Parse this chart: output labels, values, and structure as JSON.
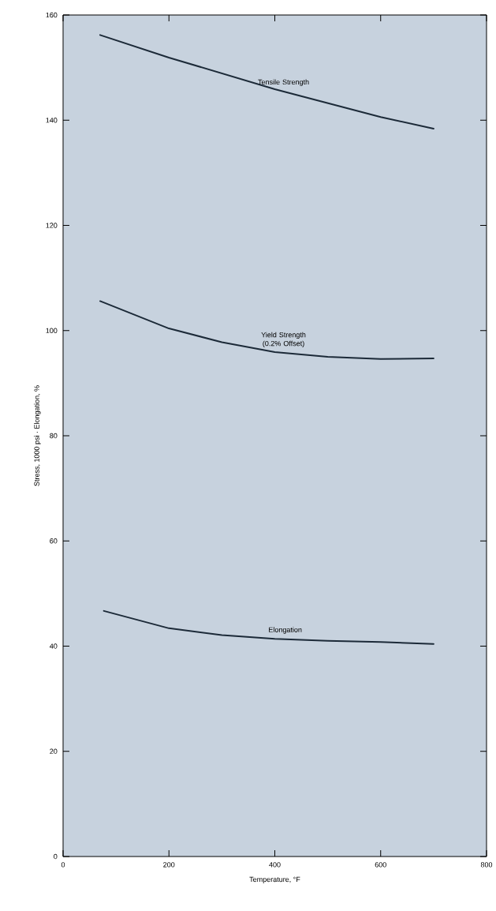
{
  "chart_data": {
    "type": "line",
    "xlabel": "Temperature, °F",
    "ylabel": "Stress, 1000 psi · Elongation, %",
    "series": [
      {
        "name": "Tensile Strength",
        "color": "#1c2a38",
        "x": [
          70,
          200,
          400,
          600,
          700
        ],
        "values": [
          156.2,
          151.9,
          145.9,
          140.6,
          138.4
        ]
      },
      {
        "name": "Yield Strength (0.2% Offset)",
        "color": "#1c2a38",
        "x": [
          70,
          200,
          300,
          400,
          500,
          600,
          700
        ],
        "values": [
          105.6,
          100.4,
          97.8,
          95.9,
          95.0,
          94.6,
          94.7
        ]
      },
      {
        "name": "Elongation",
        "color": "#1c2a38",
        "x": [
          77,
          200,
          300,
          400,
          500,
          600,
          700
        ],
        "values": [
          46.7,
          43.4,
          42.1,
          41.4,
          41.0,
          40.8,
          40.4
        ]
      }
    ],
    "xlim": [
      0,
      800
    ],
    "ylim": [
      0,
      160
    ],
    "xticks": [
      0,
      200,
      400,
      600,
      800
    ],
    "yticks": [
      0,
      20,
      40,
      60,
      80,
      100,
      120,
      140,
      160
    ],
    "grid": false,
    "marker": "none",
    "line_style": "solid"
  }
}
